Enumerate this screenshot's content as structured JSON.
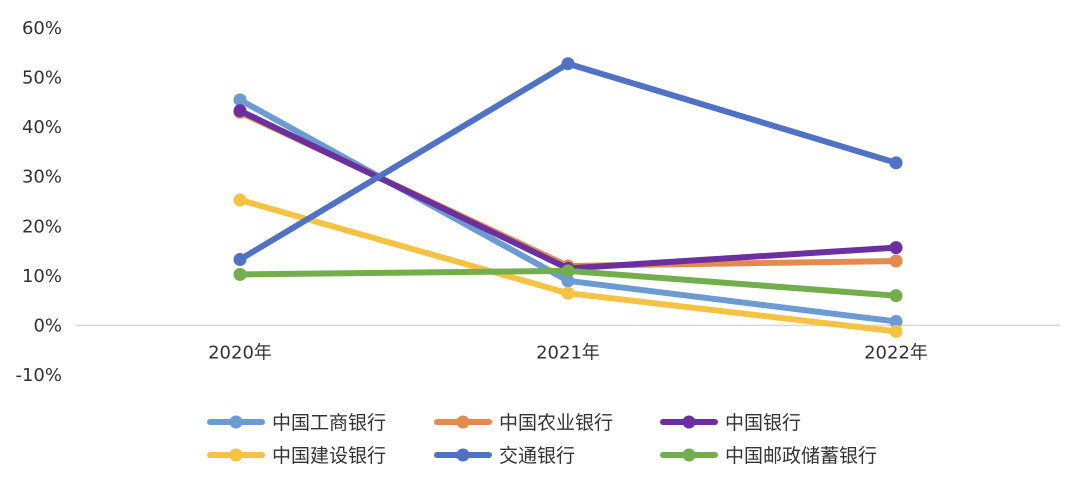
{
  "chart_data": {
    "type": "line",
    "title": "",
    "xlabel": "",
    "ylabel": "",
    "categories": [
      "2020年",
      "2021年",
      "2022年"
    ],
    "ylim": [
      -10,
      60
    ],
    "yticks": [
      60,
      50,
      40,
      30,
      20,
      10,
      0,
      -10
    ],
    "ytick_labels": [
      "60%",
      "50%",
      "40%",
      "30%",
      "20%",
      "10%",
      "0%",
      "-10%"
    ],
    "grid": false,
    "legend": "bottom",
    "series": [
      {
        "name": "中国工商银行",
        "color": "#6A9BD2",
        "values": [
          45.5,
          9.0,
          0.8
        ]
      },
      {
        "name": "中国农业银行",
        "color": "#E58A4E",
        "values": [
          43.0,
          12.0,
          13.0
        ]
      },
      {
        "name": "中国银行",
        "color": "#6B2FA0",
        "values": [
          43.3,
          11.5,
          15.7
        ]
      },
      {
        "name": "中国建设银行",
        "color": "#F5C343",
        "values": [
          25.3,
          6.5,
          -1.2
        ]
      },
      {
        "name": "交通银行",
        "color": "#4F72C4",
        "values": [
          13.3,
          52.8,
          32.8
        ]
      },
      {
        "name": "中国邮政储蓄银行",
        "color": "#72AE4C",
        "values": [
          10.3,
          11.0,
          6.0
        ]
      }
    ]
  }
}
